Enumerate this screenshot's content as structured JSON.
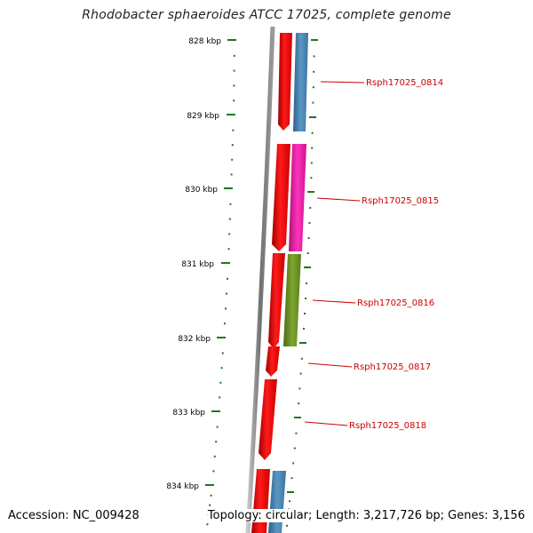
{
  "title": "Rhodobacter sphaeroides ATCC 17025, complete genome",
  "ruler": {
    "labels": [
      "828 kbp",
      "829 kbp",
      "830 kbp",
      "831 kbp",
      "832 kbp",
      "833 kbp",
      "834 kbp"
    ],
    "tick_color": "#1a7a1a"
  },
  "genes": [
    {
      "locus_tag": "Rsph17025_0814"
    },
    {
      "locus_tag": "Rsph17025_0815"
    },
    {
      "locus_tag": "Rsph17025_0816"
    },
    {
      "locus_tag": "Rsph17025_0817"
    },
    {
      "locus_tag": "Rsph17025_0818"
    }
  ],
  "colors": {
    "gene_red": "#ff0000",
    "cds_blue": "#4682b4",
    "cds_magenta": "#ee1aa5",
    "cds_olive": "#6b8e23",
    "label_red": "#cc0000",
    "backbone": "#808080"
  },
  "footer": {
    "accession": "Accession: NC_009428",
    "summary": "Topology: circular; Length: 3,217,726 bp; Genes: 3,156"
  }
}
